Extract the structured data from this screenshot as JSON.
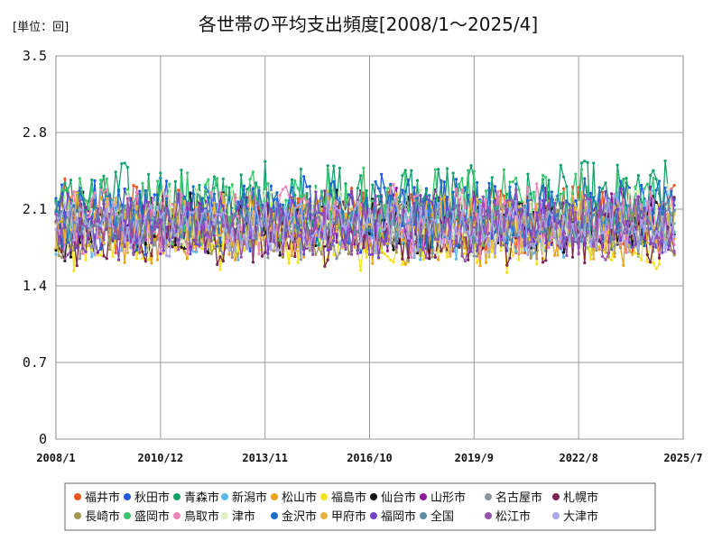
{
  "chart_data": {
    "type": "line",
    "title": "各世帯の平均支出頻度[2008/1～2025/4]",
    "unit_label": "[単位：回]",
    "ylim": [
      0,
      3.5
    ],
    "ytick_labels": [
      "3.5",
      "2.8",
      "2.1",
      "1.4",
      "0.7",
      "0"
    ],
    "ytick_values": [
      3.5,
      2.8,
      2.1,
      1.4,
      0.7,
      0
    ],
    "xtick_labels": [
      "2008/1",
      "2010/12",
      "2013/11",
      "2016/10",
      "2019/9",
      "2022/8",
      "2025/7"
    ],
    "xtick_index": [
      0,
      35,
      70,
      105,
      140,
      175,
      210
    ],
    "n_points": 208,
    "grid": true,
    "markers": true,
    "legend_position": "bottom",
    "series": [
      {
        "name": "福井市",
        "color": "#f0541c",
        "base": 2.0,
        "amp": 0.3
      },
      {
        "name": "秋田市",
        "color": "#1f5ae0",
        "base": 2.05,
        "amp": 0.3
      },
      {
        "name": "青森市",
        "color": "#16a06a",
        "base": 2.15,
        "amp": 0.35
      },
      {
        "name": "新潟市",
        "color": "#5bb8ea",
        "base": 1.95,
        "amp": 0.25
      },
      {
        "name": "松山市",
        "color": "#e8a317",
        "base": 1.9,
        "amp": 0.25
      },
      {
        "name": "福島市",
        "color": "#f6e21b",
        "base": 1.85,
        "amp": 0.25
      },
      {
        "name": "仙台市",
        "color": "#111111",
        "base": 1.95,
        "amp": 0.25
      },
      {
        "name": "山形市",
        "color": "#8e1a9e",
        "base": 2.0,
        "amp": 0.25
      },
      {
        "name": "名古屋市",
        "color": "#8c949c",
        "base": 1.9,
        "amp": 0.2
      },
      {
        "name": "札幌市",
        "color": "#7a2250",
        "base": 1.9,
        "amp": 0.25
      },
      {
        "name": "長崎市",
        "color": "#a39855",
        "base": 1.95,
        "amp": 0.25
      },
      {
        "name": "盛岡市",
        "color": "#3cc66e",
        "base": 2.1,
        "amp": 0.3
      },
      {
        "name": "鳥取市",
        "color": "#ec84b8",
        "base": 2.0,
        "amp": 0.28
      },
      {
        "name": "津市",
        "color": "#dff0c4",
        "base": 2.0,
        "amp": 0.25
      },
      {
        "name": "金沢市",
        "color": "#1c6fc2",
        "base": 2.05,
        "amp": 0.28
      },
      {
        "name": "甲府市",
        "color": "#e6b43c",
        "base": 1.95,
        "amp": 0.25
      },
      {
        "name": "福岡市",
        "color": "#7344c6",
        "base": 1.95,
        "amp": 0.25
      },
      {
        "name": "全国",
        "color": "#5a8ea5",
        "base": 1.98,
        "amp": 0.12
      },
      {
        "name": "松江市",
        "color": "#9852b0",
        "base": 1.95,
        "amp": 0.25
      },
      {
        "name": "大津市",
        "color": "#a7a7e8",
        "base": 1.95,
        "amp": 0.22
      }
    ]
  }
}
